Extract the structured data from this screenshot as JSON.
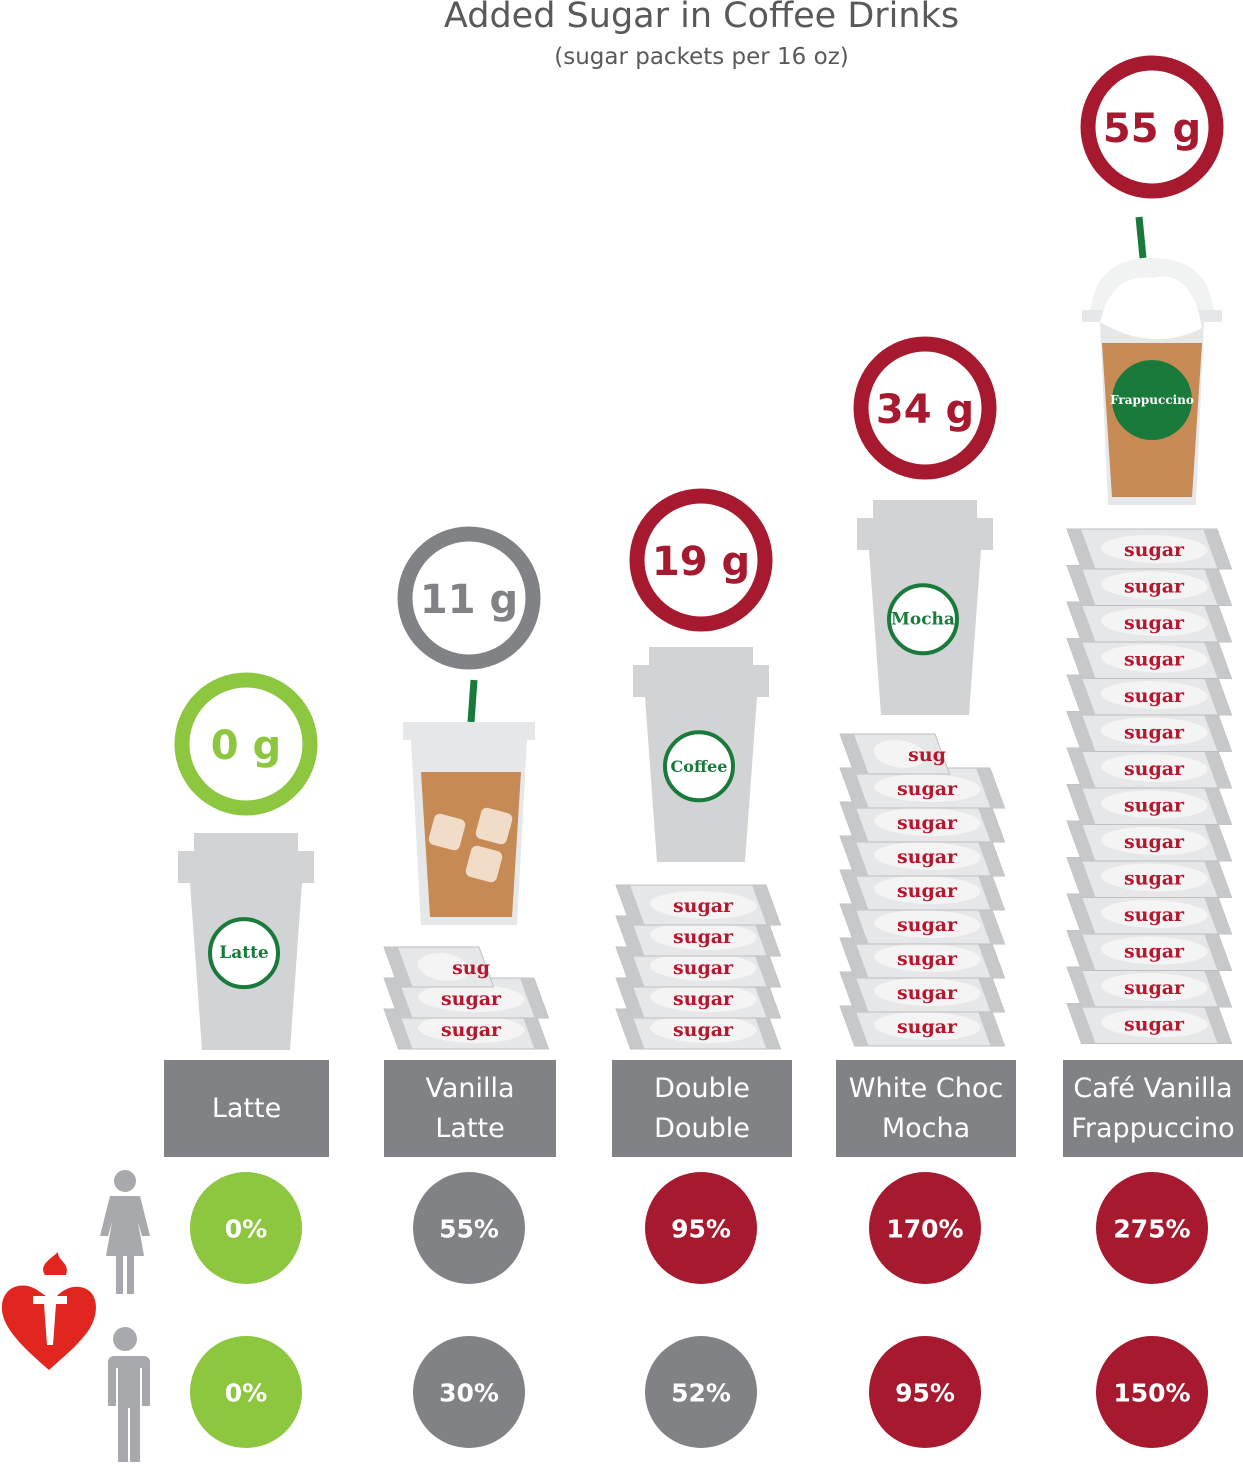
{
  "chart_data": {
    "type": "bar",
    "title": "Added Sugar in Coffee Drinks",
    "subtitle": "(sugar packets per 16 oz)",
    "categories": [
      "Latte",
      "Vanilla\nLatte",
      "Double\nDouble",
      "White Choc\nMocha",
      "Café Vanilla\nFrappuccino"
    ],
    "cup_labels": [
      "Latte",
      "",
      "Coffee",
      "Mocha",
      "Frappuccino"
    ],
    "cup_types": [
      "hot",
      "iced",
      "hot",
      "hot",
      "frappe"
    ],
    "sugar_grams": [
      0,
      11,
      19,
      34,
      55
    ],
    "sugar_grams_labels": [
      "0 g",
      "11 g",
      "19 g",
      "34 g",
      "55 g"
    ],
    "sugar_packets": [
      0,
      3,
      5,
      9,
      14
    ],
    "packet_text": "sugar",
    "series": [
      {
        "name": "women",
        "values": [
          0,
          55,
          95,
          170,
          275
        ],
        "labels": [
          "0%",
          "55%",
          "95%",
          "170%",
          "275%"
        ]
      },
      {
        "name": "men",
        "values": [
          0,
          30,
          52,
          95,
          150
        ],
        "labels": [
          "0%",
          "30%",
          "52%",
          "95%",
          "150%"
        ]
      }
    ]
  },
  "colors": {
    "low": "#8dc63f",
    "mid": "#808285",
    "high": "#a6192e",
    "badge": "#1a7a3c",
    "label_bg": "#808285",
    "heart": "#e0261f"
  },
  "level_colors": {
    "rings": [
      "low",
      "mid",
      "high",
      "high",
      "high"
    ],
    "women": [
      "low",
      "mid",
      "high",
      "high",
      "high"
    ],
    "men": [
      "low",
      "mid",
      "mid",
      "high",
      "high"
    ]
  }
}
